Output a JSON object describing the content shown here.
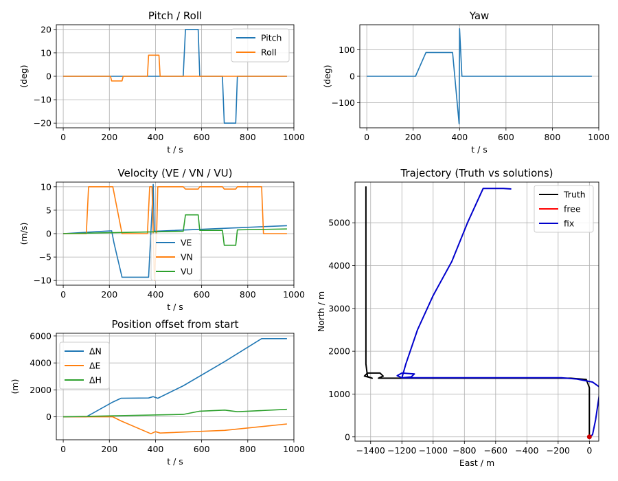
{
  "chart_data": [
    {
      "id": "pitchroll",
      "type": "line",
      "title": "Pitch / Roll",
      "xlabel": "t / s",
      "ylabel": "(deg)",
      "xlim": [
        -30,
        1000
      ],
      "ylim": [
        -22,
        22
      ],
      "xticks": [
        0,
        200,
        400,
        600,
        800,
        1000
      ],
      "yticks": [
        -20,
        -10,
        0,
        10,
        20
      ],
      "grid": true,
      "legend": "upper-right",
      "series": [
        {
          "name": "Pitch",
          "color": "#1f77b4",
          "points": [
            [
              0,
              0
            ],
            [
              520,
              0
            ],
            [
              530,
              20
            ],
            [
              585,
              20
            ],
            [
              592,
              0
            ],
            [
              690,
              0
            ],
            [
              698,
              -20
            ],
            [
              748,
              -20
            ],
            [
              755,
              0
            ],
            [
              970,
              0
            ]
          ]
        },
        {
          "name": "Roll",
          "color": "#ff7f0e",
          "points": [
            [
              0,
              0
            ],
            [
              205,
              0
            ],
            [
              210,
              -2
            ],
            [
              255,
              -2
            ],
            [
              260,
              0
            ],
            [
              365,
              0
            ],
            [
              370,
              9
            ],
            [
              415,
              9
            ],
            [
              420,
              0
            ],
            [
              970,
              0
            ]
          ]
        }
      ]
    },
    {
      "id": "yaw",
      "type": "line",
      "title": "Yaw",
      "xlabel": "t / s",
      "ylabel": "(deg)",
      "xlim": [
        -30,
        1000
      ],
      "ylim": [
        -195,
        195
      ],
      "xticks": [
        0,
        200,
        400,
        600,
        800,
        1000
      ],
      "yticks": [
        -100,
        0,
        100
      ],
      "grid": true,
      "series": [
        {
          "name": "",
          "color": "#1f77b4",
          "points": [
            [
              0,
              0
            ],
            [
              210,
              0
            ],
            [
              255,
              90
            ],
            [
              370,
              90
            ],
            [
              398,
              -180
            ],
            [
              400,
              180
            ],
            [
              410,
              0
            ],
            [
              970,
              0
            ]
          ]
        }
      ]
    },
    {
      "id": "velocity",
      "type": "line",
      "title": "Velocity (VE / VN / VU)",
      "xlabel": "t / s",
      "ylabel": "(m/s)",
      "xlim": [
        -30,
        1000
      ],
      "ylim": [
        -11,
        11
      ],
      "xticks": [
        0,
        200,
        400,
        600,
        800,
        1000
      ],
      "yticks": [
        -10,
        -5,
        0,
        5,
        10
      ],
      "grid": true,
      "legend": "lower-center",
      "series": [
        {
          "name": "VE",
          "color": "#1f77b4",
          "points": [
            [
              0,
              0
            ],
            [
              210,
              0.6
            ],
            [
              220,
              -2
            ],
            [
              255,
              -9.3
            ],
            [
              370,
              -9.3
            ],
            [
              385,
              5
            ],
            [
              390,
              10.5
            ],
            [
              395,
              0.5
            ],
            [
              970,
              1.7
            ]
          ]
        },
        {
          "name": "VN",
          "color": "#ff7f0e",
          "points": [
            [
              0,
              0
            ],
            [
              100,
              0
            ],
            [
              110,
              10
            ],
            [
              215,
              10
            ],
            [
              255,
              0
            ],
            [
              365,
              0
            ],
            [
              375,
              10
            ],
            [
              385,
              10
            ],
            [
              395,
              -10
            ],
            [
              405,
              0
            ],
            [
              410,
              10
            ],
            [
              520,
              10
            ],
            [
              530,
              9.5
            ],
            [
              585,
              9.5
            ],
            [
              592,
              10
            ],
            [
              690,
              10
            ],
            [
              698,
              9.5
            ],
            [
              748,
              9.5
            ],
            [
              755,
              10
            ],
            [
              860,
              10
            ],
            [
              868,
              0
            ],
            [
              970,
              0
            ]
          ]
        },
        {
          "name": "VU",
          "color": "#2ca02c",
          "points": [
            [
              0,
              0
            ],
            [
              520,
              0.5
            ],
            [
              530,
              4
            ],
            [
              585,
              4
            ],
            [
              592,
              0.7
            ],
            [
              690,
              0.7
            ],
            [
              698,
              -2.5
            ],
            [
              748,
              -2.5
            ],
            [
              755,
              0.8
            ],
            [
              970,
              1
            ]
          ]
        }
      ]
    },
    {
      "id": "position",
      "type": "line",
      "title": "Position offset from start",
      "xlabel": "t / s",
      "ylabel": "(m)",
      "xlim": [
        -30,
        1000
      ],
      "ylim": [
        -1700,
        6200
      ],
      "xticks": [
        0,
        200,
        400,
        600,
        800,
        1000
      ],
      "yticks": [
        0,
        2000,
        4000,
        6000
      ],
      "grid": true,
      "legend": "upper-left",
      "series": [
        {
          "name": "ΔN",
          "color": "#1f77b4",
          "points": [
            [
              0,
              0
            ],
            [
              100,
              0
            ],
            [
              215,
              1100
            ],
            [
              250,
              1380
            ],
            [
              370,
              1400
            ],
            [
              390,
              1500
            ],
            [
              410,
              1380
            ],
            [
              520,
              2300
            ],
            [
              700,
              4100
            ],
            [
              860,
              5800
            ],
            [
              970,
              5800
            ]
          ]
        },
        {
          "name": "ΔE",
          "color": "#ff7f0e",
          "points": [
            [
              0,
              0
            ],
            [
              215,
              0
            ],
            [
              250,
              -300
            ],
            [
              380,
              -1250
            ],
            [
              400,
              -1100
            ],
            [
              420,
              -1200
            ],
            [
              700,
              -1000
            ],
            [
              970,
              -530
            ]
          ]
        },
        {
          "name": "ΔH",
          "color": "#2ca02c",
          "points": [
            [
              0,
              0
            ],
            [
              520,
              180
            ],
            [
              592,
              420
            ],
            [
              700,
              500
            ],
            [
              755,
              380
            ],
            [
              970,
              560
            ]
          ]
        }
      ]
    },
    {
      "id": "trajectory",
      "type": "line",
      "title": "Trajectory (Truth vs solutions)",
      "xlabel": "East / m",
      "ylabel": "North / m",
      "xlim": [
        -1500,
        60
      ],
      "ylim": [
        -100,
        5950
      ],
      "xticks": [
        -1400,
        -1200,
        -1000,
        -800,
        -600,
        -400,
        -200,
        0
      ],
      "yticks": [
        0,
        1000,
        2000,
        3000,
        4000,
        5000
      ],
      "grid": true,
      "legend": "upper-right",
      "series": [
        {
          "name": "Truth",
          "color": "#000000",
          "points": [
            [
              0,
              0
            ],
            [
              0,
              1150
            ],
            [
              -20,
              1340
            ],
            [
              -120,
              1370
            ],
            [
              -1350,
              1370
            ],
            [
              -1320,
              1420
            ],
            [
              -1340,
              1490
            ],
            [
              -1420,
              1490
            ],
            [
              -1440,
              1420
            ],
            [
              -1390,
              1370
            ],
            [
              -1420,
              1410
            ],
            [
              -1430,
              1700
            ],
            [
              -1430,
              5850
            ]
          ]
        },
        {
          "name": "free",
          "color": "#ff0000",
          "points": [
            [
              0,
              0
            ],
            [
              10,
              30
            ],
            [
              0,
              0
            ]
          ]
        },
        {
          "name": "fix",
          "color": "#0000cc",
          "points": [
            [
              0,
              0
            ],
            [
              20,
              50
            ],
            [
              40,
              400
            ],
            [
              60,
              900
            ],
            [
              70,
              1150
            ],
            [
              20,
              1280
            ],
            [
              -80,
              1350
            ],
            [
              -180,
              1380
            ],
            [
              -1200,
              1380
            ],
            [
              -1230,
              1430
            ],
            [
              -1200,
              1490
            ],
            [
              -1120,
              1470
            ],
            [
              -1140,
              1400
            ],
            [
              -1200,
              1380
            ],
            [
              -1175,
              1700
            ],
            [
              -1100,
              2500
            ],
            [
              -1000,
              3300
            ],
            [
              -880,
              4100
            ],
            [
              -780,
              5000
            ],
            [
              -680,
              5800
            ],
            [
              -550,
              5800
            ],
            [
              -500,
              5790
            ]
          ]
        }
      ]
    }
  ]
}
